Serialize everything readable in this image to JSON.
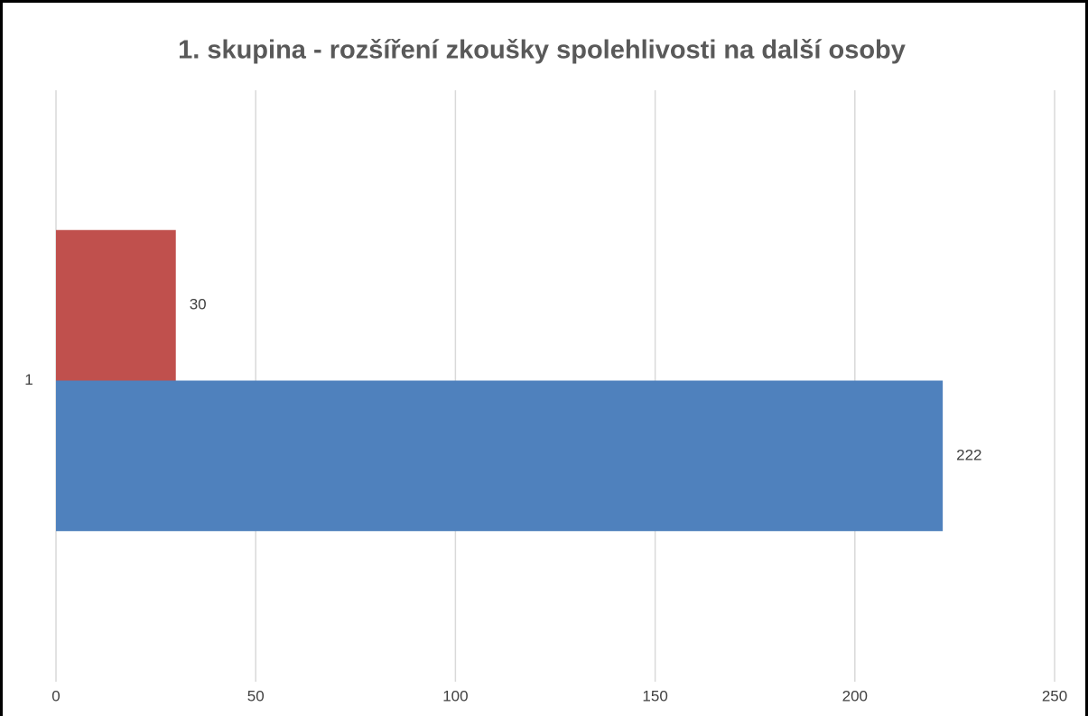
{
  "chart_data": {
    "type": "bar",
    "orientation": "horizontal",
    "title": "1. skupina - rozšíření zkoušky spolehlivosti na další osoby",
    "categories": [
      "1"
    ],
    "series": [
      {
        "color": "#4f81bd",
        "values": [
          222
        ]
      },
      {
        "color": "#c0504d",
        "values": [
          30
        ]
      }
    ],
    "xlim": [
      0,
      250
    ],
    "xticks": [
      0,
      50,
      100,
      150,
      200,
      250
    ],
    "grid": true
  }
}
